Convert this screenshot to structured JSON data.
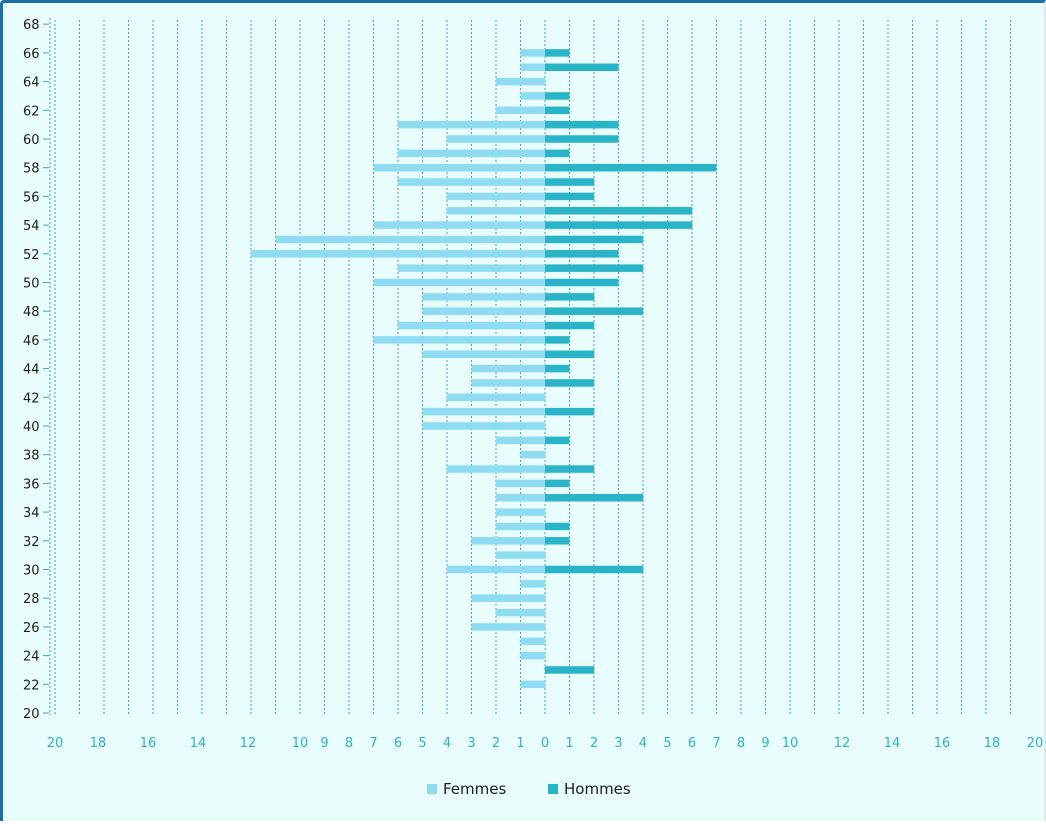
{
  "chart_data": {
    "type": "bar",
    "orientation": "horizontal",
    "layout": "population-pyramid",
    "title": "",
    "xlabel": "",
    "ylabel": "",
    "y_ticks": [
      "20",
      "22",
      "24",
      "26",
      "28",
      "30",
      "32",
      "34",
      "36",
      "38",
      "40",
      "42",
      "44",
      "46",
      "48",
      "50",
      "52",
      "54",
      "56",
      "58",
      "60",
      "62",
      "64",
      "66",
      "68"
    ],
    "x_ticks": [
      "20",
      "18",
      "16",
      "14",
      "12",
      "10",
      "9",
      "8",
      "7",
      "6",
      "5",
      "4",
      "3",
      "2",
      "1",
      "0",
      "1",
      "2",
      "3",
      "4",
      "5",
      "6",
      "7",
      "8",
      "9",
      "10",
      "12",
      "14",
      "16",
      "18",
      "20"
    ],
    "ages": [
      22,
      23,
      24,
      25,
      26,
      27,
      28,
      29,
      30,
      31,
      32,
      33,
      34,
      35,
      36,
      37,
      38,
      39,
      40,
      41,
      42,
      43,
      44,
      45,
      46,
      47,
      48,
      49,
      50,
      51,
      52,
      53,
      54,
      55,
      56,
      57,
      58,
      59,
      60,
      61,
      62,
      63,
      64,
      65,
      66
    ],
    "series": [
      {
        "name": "Femmes",
        "color": "#8fdcf2",
        "side": "left",
        "values": [
          1,
          0,
          1,
          1,
          3,
          2,
          3,
          1,
          4,
          2,
          3,
          2,
          2,
          2,
          2,
          4,
          1,
          2,
          5,
          5,
          4,
          3,
          3,
          5,
          7,
          6,
          5,
          5,
          7,
          6,
          12,
          11,
          7,
          4,
          4,
          6,
          7,
          6,
          4,
          6,
          2,
          1,
          2,
          1,
          1
        ]
      },
      {
        "name": "Hommes",
        "color": "#2ab4c8",
        "side": "right",
        "values": [
          0,
          2,
          0,
          0,
          0,
          0,
          0,
          0,
          4,
          0,
          1,
          1,
          0,
          4,
          1,
          2,
          0,
          1,
          0,
          2,
          0,
          2,
          1,
          2,
          1,
          2,
          4,
          2,
          3,
          4,
          3,
          4,
          6,
          6,
          2,
          2,
          7,
          1,
          3,
          3,
          1,
          1,
          0,
          3,
          1
        ]
      }
    ],
    "legend": {
      "position": "bottom-center"
    },
    "grid": true,
    "axis_tick_color": "#2ab4c8"
  }
}
